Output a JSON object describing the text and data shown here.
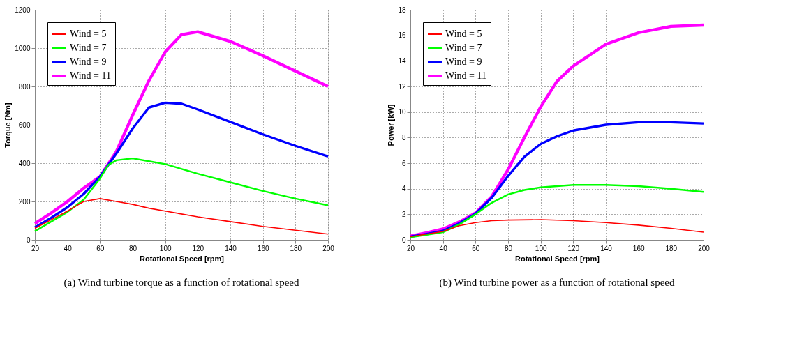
{
  "chart_data": [
    {
      "type": "line",
      "xlabel": "Rotational Speed [rpm]",
      "ylabel": "Torque [Nm]",
      "xlim": [
        20,
        200
      ],
      "ylim": [
        0,
        1200
      ],
      "xticks": [
        20,
        40,
        60,
        80,
        100,
        120,
        140,
        160,
        180,
        200
      ],
      "yticks": [
        0,
        200,
        400,
        600,
        800,
        1000,
        1200
      ],
      "grid": true,
      "legend": "top left",
      "annotations": [
        "(a)  Wind turbine torque as a function of rotational speed"
      ],
      "series": [
        {
          "name": "Wind = 5",
          "color": "#ff0000",
          "x": [
            20,
            30,
            40,
            45,
            50,
            60,
            70,
            80,
            90,
            100,
            120,
            140,
            160,
            180,
            200
          ],
          "values": [
            60,
            105,
            150,
            175,
            200,
            215,
            200,
            185,
            165,
            150,
            120,
            95,
            70,
            50,
            30
          ]
        },
        {
          "name": "Wind = 7",
          "color": "#00ff00",
          "x": [
            20,
            30,
            40,
            50,
            60,
            65,
            70,
            80,
            90,
            100,
            120,
            140,
            160,
            180,
            200
          ],
          "values": [
            45,
            95,
            145,
            210,
            320,
            390,
            415,
            425,
            410,
            395,
            345,
            300,
            255,
            215,
            180
          ]
        },
        {
          "name": "Wind = 9",
          "color": "#0000ff",
          "x": [
            20,
            30,
            40,
            50,
            60,
            70,
            80,
            90,
            100,
            110,
            120,
            140,
            160,
            180,
            200
          ],
          "values": [
            65,
            115,
            170,
            240,
            330,
            450,
            580,
            690,
            715,
            710,
            680,
            615,
            550,
            490,
            435
          ]
        },
        {
          "name": "Wind = 11",
          "color": "#ff00ff",
          "x": [
            20,
            30,
            40,
            50,
            60,
            70,
            80,
            90,
            100,
            110,
            120,
            140,
            160,
            180,
            200
          ],
          "values": [
            85,
            140,
            200,
            270,
            330,
            460,
            650,
            830,
            980,
            1070,
            1085,
            1035,
            960,
            880,
            800
          ]
        }
      ]
    },
    {
      "type": "line",
      "xlabel": "Rotational Speed [rpm]",
      "ylabel": "Power [kW]",
      "xlim": [
        20,
        200
      ],
      "ylim": [
        0,
        18
      ],
      "xticks": [
        20,
        40,
        60,
        80,
        100,
        120,
        140,
        160,
        180,
        200
      ],
      "yticks": [
        0,
        2,
        4,
        6,
        8,
        10,
        12,
        14,
        16,
        18
      ],
      "grid": true,
      "legend": "top left",
      "annotations": [
        "(b)  Wind turbine power as a function of rotational speed"
      ],
      "series": [
        {
          "name": "Wind = 5",
          "color": "#ff0000",
          "x": [
            20,
            30,
            40,
            50,
            60,
            70,
            80,
            100,
            120,
            140,
            160,
            180,
            200
          ],
          "values": [
            0.25,
            0.45,
            0.65,
            1.1,
            1.35,
            1.5,
            1.55,
            1.58,
            1.5,
            1.35,
            1.15,
            0.9,
            0.6
          ]
        },
        {
          "name": "Wind = 7",
          "color": "#00ff00",
          "x": [
            20,
            30,
            40,
            50,
            60,
            70,
            80,
            90,
            100,
            120,
            140,
            160,
            180,
            200
          ],
          "values": [
            0.2,
            0.4,
            0.6,
            1.2,
            2.0,
            2.9,
            3.55,
            3.9,
            4.1,
            4.3,
            4.3,
            4.2,
            4.0,
            3.75
          ]
        },
        {
          "name": "Wind = 9",
          "color": "#0000ff",
          "x": [
            20,
            30,
            40,
            50,
            60,
            70,
            80,
            90,
            100,
            110,
            120,
            140,
            160,
            180,
            200
          ],
          "values": [
            0.25,
            0.45,
            0.7,
            1.3,
            2.05,
            3.3,
            5.0,
            6.5,
            7.5,
            8.1,
            8.55,
            9.0,
            9.2,
            9.2,
            9.1
          ]
        },
        {
          "name": "Wind = 11",
          "color": "#ff00ff",
          "x": [
            20,
            30,
            40,
            50,
            60,
            70,
            80,
            90,
            100,
            110,
            120,
            140,
            160,
            180,
            200
          ],
          "values": [
            0.3,
            0.55,
            0.85,
            1.4,
            2.1,
            3.4,
            5.5,
            8.0,
            10.4,
            12.4,
            13.6,
            15.3,
            16.2,
            16.7,
            16.8
          ]
        }
      ]
    }
  ]
}
